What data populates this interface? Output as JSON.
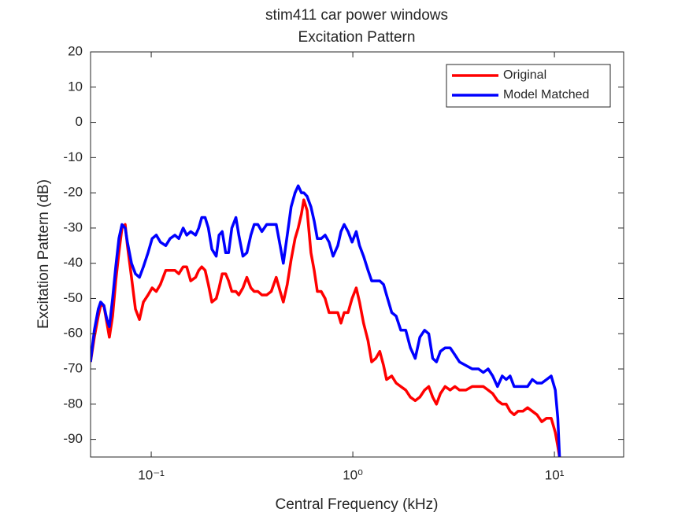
{
  "chart_data": {
    "type": "line",
    "title": "stim411 car power windows",
    "subtitle": "Excitation Pattern",
    "xlabel": "Central Frequency (kHz)",
    "ylabel": "Excitation Pattern (dB)",
    "xscale": "log",
    "xlim": [
      0.05,
      22.05
    ],
    "ylim": [
      -95,
      20
    ],
    "xticks": [
      {
        "value": 0.1,
        "label": "10⁻¹"
      },
      {
        "value": 1,
        "label": "10⁰"
      },
      {
        "value": 10,
        "label": "10¹"
      }
    ],
    "yticks": [
      20,
      10,
      0,
      -10,
      -20,
      -30,
      -40,
      -50,
      -60,
      -70,
      -80,
      -90
    ],
    "grid": false,
    "legend": "upper right",
    "x": [
      0.05,
      0.0522,
      0.0546,
      0.0561,
      0.0582,
      0.0603,
      0.062,
      0.0643,
      0.0667,
      0.0691,
      0.0716,
      0.0743,
      0.0762,
      0.0798,
      0.0835,
      0.0874,
      0.0914,
      0.0964,
      0.101,
      0.106,
      0.111,
      0.118,
      0.124,
      0.131,
      0.137,
      0.144,
      0.15,
      0.157,
      0.166,
      0.172,
      0.178,
      0.185,
      0.192,
      0.2,
      0.21,
      0.217,
      0.225,
      0.234,
      0.242,
      0.251,
      0.263,
      0.272,
      0.285,
      0.298,
      0.312,
      0.324,
      0.338,
      0.354,
      0.374,
      0.394,
      0.417,
      0.436,
      0.452,
      0.473,
      0.494,
      0.517,
      0.536,
      0.556,
      0.571,
      0.593,
      0.62,
      0.643,
      0.667,
      0.697,
      0.729,
      0.762,
      0.798,
      0.842,
      0.873,
      0.906,
      0.947,
      0.991,
      1.04,
      1.08,
      1.13,
      1.19,
      1.24,
      1.3,
      1.36,
      1.42,
      1.47,
      1.56,
      1.64,
      1.73,
      1.83,
      1.93,
      2.04,
      2.15,
      2.27,
      2.38,
      2.49,
      2.6,
      2.72,
      2.87,
      3.04,
      3.21,
      3.38,
      3.64,
      3.91,
      4.2,
      4.44,
      4.69,
      4.94,
      5.22,
      5.51,
      5.77,
      6.03,
      6.31,
      6.6,
      6.97,
      7.36,
      7.77,
      8.2,
      8.65,
      9.14,
      9.64,
      10.1,
      10.4,
      10.6
    ],
    "series": [
      {
        "name": "Original",
        "color": "#ff0000",
        "values": [
          -68,
          -61,
          -55,
          -52,
          -52,
          -57,
          -61,
          -55,
          -45,
          -37,
          -30,
          -29,
          -35,
          -44,
          -53,
          -56,
          -51,
          -49,
          -47,
          -48,
          -46,
          -42,
          -42,
          -42,
          -43,
          -41,
          -41,
          -45,
          -44,
          -42,
          -41,
          -42,
          -46,
          -51,
          -50,
          -47,
          -43,
          -43,
          -45,
          -48,
          -48,
          -49,
          -47,
          -44,
          -47,
          -48,
          -48,
          -49,
          -49,
          -48,
          -44,
          -48,
          -51,
          -46,
          -39,
          -33,
          -30,
          -26,
          -22,
          -25,
          -37,
          -42,
          -48,
          -48,
          -50,
          -54,
          -54,
          -54,
          -57,
          -54,
          -54,
          -50,
          -47,
          -51,
          -57,
          -62,
          -68,
          -67,
          -65,
          -69,
          -73,
          -72,
          -74,
          -75,
          -76,
          -78,
          -79,
          -78,
          -76,
          -75,
          -78,
          -80,
          -77,
          -75,
          -76,
          -75,
          -76,
          -76,
          -75,
          -75,
          -75,
          -76,
          -77,
          -79,
          -80,
          -80,
          -82,
          -83,
          -82,
          -82,
          -81,
          -82,
          -83,
          -85,
          -84,
          -84,
          -88,
          -92,
          -95
        ]
      },
      {
        "name": "Model Matched",
        "color": "#0000ff",
        "values": [
          -68,
          -59,
          -53,
          -51,
          -52,
          -56,
          -58,
          -50,
          -41,
          -33,
          -29,
          -30,
          -34,
          -40,
          -43,
          -44,
          -41,
          -37,
          -33,
          -32,
          -34,
          -35,
          -33,
          -32,
          -33,
          -30,
          -32,
          -31,
          -32,
          -30,
          -27,
          -27,
          -30,
          -36,
          -38,
          -32,
          -31,
          -37,
          -37,
          -30,
          -27,
          -32,
          -38,
          -37,
          -32,
          -29,
          -29,
          -31,
          -29,
          -29,
          -29,
          -35,
          -40,
          -32,
          -24,
          -20,
          -18,
          -20,
          -20,
          -21,
          -24,
          -28,
          -33,
          -33,
          -32,
          -34,
          -38,
          -35,
          -31,
          -29,
          -31,
          -34,
          -31,
          -35,
          -38,
          -42,
          -45,
          -45,
          -45,
          -46,
          -49,
          -54,
          -55,
          -59,
          -59,
          -64,
          -67,
          -61,
          -59,
          -60,
          -67,
          -68,
          -65,
          -64,
          -64,
          -66,
          -68,
          -69,
          -70,
          -70,
          -71,
          -70,
          -72,
          -75,
          -72,
          -73,
          -72,
          -75,
          -75,
          -75,
          -75,
          -73,
          -74,
          -74,
          -73,
          -72,
          -76,
          -84,
          -95
        ]
      }
    ]
  }
}
